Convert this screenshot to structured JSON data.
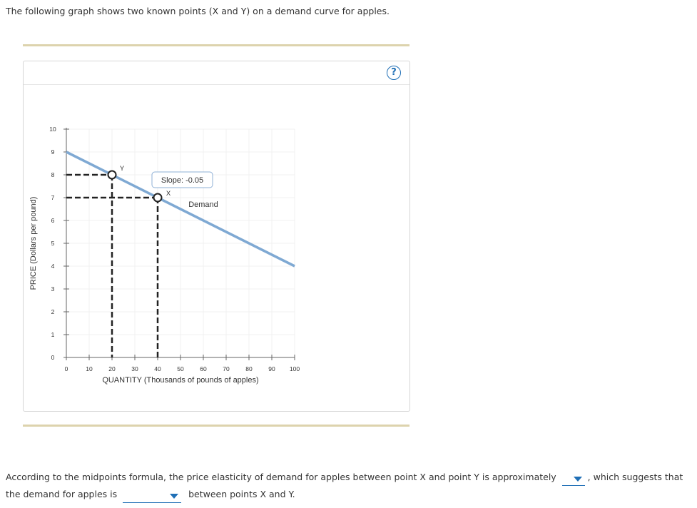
{
  "intro_text": "The following graph shows two known points (X and Y) on a demand curve for apples.",
  "help_icon": "question-circle-icon",
  "question": {
    "part1": "According to the midpoints formula, the price elasticity of demand for apples between point X and point Y is approximately",
    "part2": ", which suggests that",
    "part3": "the demand for apples is",
    "part4": "between points X and Y.",
    "dropdown_elasticity_value": "",
    "dropdown_demand_value": ""
  },
  "colors": {
    "demand_line": "#7fa9d3",
    "accent": "#1f6fb6",
    "rule": "#ddd3ad",
    "dashed": "#222222"
  },
  "chart_data": {
    "type": "line",
    "xlabel": "QUANTITY (Thousands of pounds of apples)",
    "ylabel": "PRICE (Dollars per pound)",
    "xlim": [
      0,
      100
    ],
    "ylim": [
      0,
      10
    ],
    "xticks": [
      0,
      10,
      20,
      30,
      40,
      50,
      60,
      70,
      80,
      90,
      100
    ],
    "yticks": [
      0,
      1,
      2,
      3,
      4,
      5,
      6,
      7,
      8,
      9,
      10
    ],
    "grid": true,
    "series": [
      {
        "name": "Demand",
        "x": [
          0,
          100
        ],
        "y": [
          9,
          4
        ]
      }
    ],
    "points": [
      {
        "label": "Y",
        "x": 20,
        "y": 8
      },
      {
        "label": "X",
        "x": 40,
        "y": 7
      }
    ],
    "annotations": [
      {
        "text": "Slope: -0.05",
        "x": 40,
        "y": 7
      }
    ]
  }
}
